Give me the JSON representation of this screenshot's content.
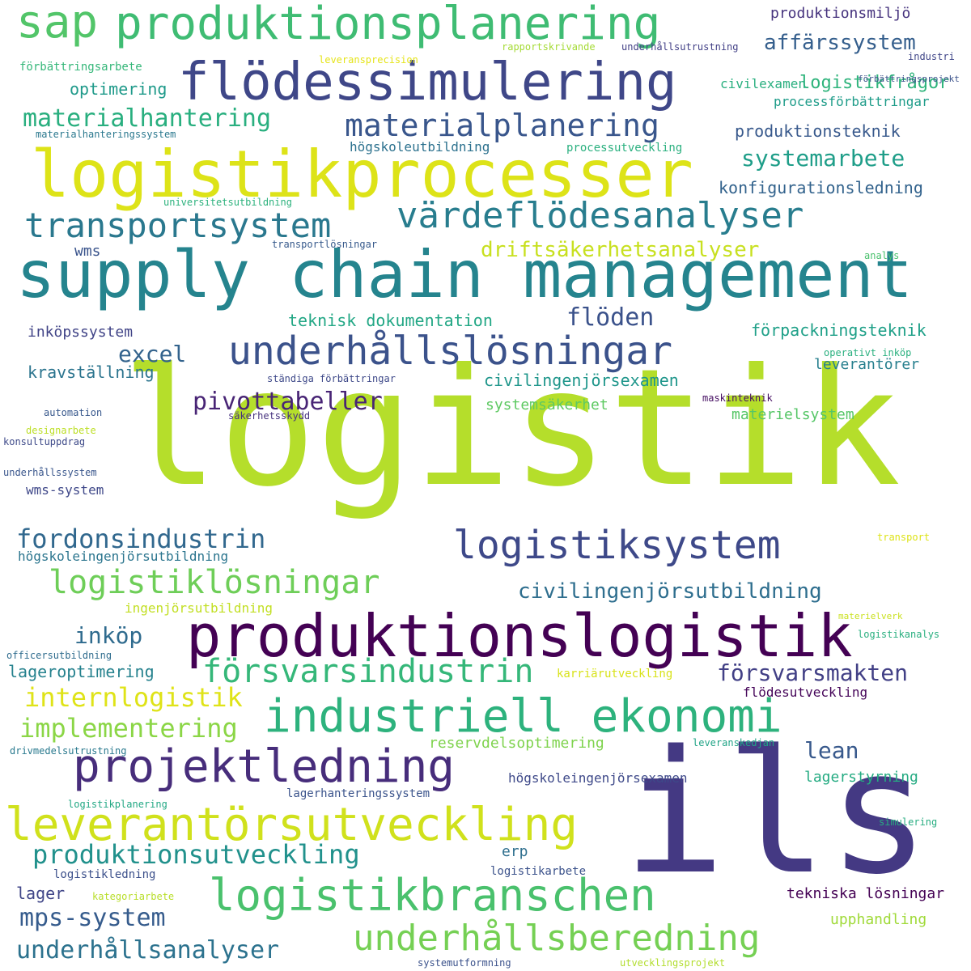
{
  "words": [
    {
      "text": "logistik",
      "color": "#b5de2b"
    },
    {
      "text": "ils",
      "color": "#443983"
    },
    {
      "text": "supply chain management",
      "color": "#25848e"
    },
    {
      "text": "logistikprocesser",
      "color": "#dde318"
    },
    {
      "text": "flödessimulering",
      "color": "#3f4788"
    },
    {
      "text": "produktionsplanering",
      "color": "#3fbc73"
    },
    {
      "text": "sap",
      "color": "#52c569"
    },
    {
      "text": "produktionslogistik",
      "color": "#440154"
    },
    {
      "text": "industriell ekonomi",
      "color": "#2db27d"
    },
    {
      "text": "underhållslösningar",
      "color": "#3b528b"
    },
    {
      "text": "värdeflödesanalyser",
      "color": "#287d8e"
    },
    {
      "text": "logistikbranschen",
      "color": "#4ac16d"
    },
    {
      "text": "leverantörsutveckling",
      "color": "#d0e11c"
    },
    {
      "text": "projektledning",
      "color": "#472d7b"
    },
    {
      "text": "logistiksystem",
      "color": "#3e4989"
    },
    {
      "text": "materialplanering",
      "color": "#39568c"
    },
    {
      "text": "transportsystem",
      "color": "#2a788e"
    },
    {
      "text": "underhållsberedning",
      "color": "#75d054"
    },
    {
      "text": "logistiklösningar",
      "color": "#6ece58"
    },
    {
      "text": "produktionsutveckling",
      "color": "#21918c"
    },
    {
      "text": "försvarsindustrin",
      "color": "#35b779"
    },
    {
      "text": "fordonsindustrin",
      "color": "#31688e"
    },
    {
      "text": "underhållsanalyser",
      "color": "#2c728e"
    },
    {
      "text": "mps-system",
      "color": "#365c8d"
    },
    {
      "text": "civilingenjörsutbildning",
      "color": "#2e6e8e"
    },
    {
      "text": "implementering",
      "color": "#8bd646"
    },
    {
      "text": "internlogistik",
      "color": "#dfe318"
    },
    {
      "text": "materialhantering",
      "color": "#29af7f"
    },
    {
      "text": "pivottabeller",
      "color": "#482475"
    },
    {
      "text": "driftsäkerhetsanalyser",
      "color": "#c8e020"
    },
    {
      "text": "affärssystem",
      "color": "#355f8d"
    },
    {
      "text": "systemarbete",
      "color": "#1f9e89"
    },
    {
      "text": "flöden",
      "color": "#3b528b"
    },
    {
      "text": "försvarsmakten",
      "color": "#424086"
    },
    {
      "text": "inköp",
      "color": "#2f6b8e"
    },
    {
      "text": "excel",
      "color": "#33638d"
    },
    {
      "text": "lean",
      "color": "#38598c"
    },
    {
      "text": "logistikfrågor",
      "color": "#2fb47c"
    },
    {
      "text": "produktionsteknik",
      "color": "#38598c"
    },
    {
      "text": "konfigurationsledning",
      "color": "#33638d"
    },
    {
      "text": "förpackningsteknik",
      "color": "#1fa088"
    },
    {
      "text": "teknisk dokumentation",
      "color": "#22a785"
    },
    {
      "text": "civilingenjörsexamen",
      "color": "#1f968b"
    },
    {
      "text": "produktionsmiljö",
      "color": "#46337e"
    },
    {
      "text": "processförbättringar",
      "color": "#1e9c89"
    },
    {
      "text": "optimering",
      "color": "#1f9a8a"
    },
    {
      "text": "lageroptimering",
      "color": "#26828e"
    },
    {
      "text": "lagerstyrning",
      "color": "#25ab82"
    },
    {
      "text": "upphandling",
      "color": "#a0da39"
    },
    {
      "text": "lager",
      "color": "#404688"
    },
    {
      "text": "tekniska lösningar",
      "color": "#440154"
    },
    {
      "text": "kravställning",
      "color": "#2b748e"
    },
    {
      "text": "inköpssystem",
      "color": "#414487"
    },
    {
      "text": "systemsäkerhet",
      "color": "#5ec962"
    },
    {
      "text": "leverantörer",
      "color": "#277f8e"
    },
    {
      "text": "materielsystem",
      "color": "#56c667"
    },
    {
      "text": "reservdelsoptimering",
      "color": "#7fd34e"
    },
    {
      "text": "högskoleingenjörsexamen",
      "color": "#3e4989"
    },
    {
      "text": "högskoleingenjörsutbildning",
      "color": "#2b758e"
    },
    {
      "text": "wms",
      "color": "#3a548c"
    },
    {
      "text": "högskoleutbildning",
      "color": "#2c718e"
    },
    {
      "text": "erp",
      "color": "#2e6f8e"
    },
    {
      "text": "civilexamen",
      "color": "#29af7f"
    },
    {
      "text": "flödesutveckling",
      "color": "#450559"
    },
    {
      "text": "lagerhanteringssystem",
      "color": "#3a538b"
    },
    {
      "text": "ingenjörsutbildning",
      "color": "#c2df23"
    },
    {
      "text": "wms-system",
      "color": "#3f4889"
    },
    {
      "text": "logistikledning",
      "color": "#3c508b"
    },
    {
      "text": "logistikarbete",
      "color": "#3b528b"
    },
    {
      "text": "kategoriarbete",
      "color": "#b8de29"
    },
    {
      "text": "processutveckling",
      "color": "#2ab07f"
    },
    {
      "text": "karriärutveckling",
      "color": "#d8e219"
    },
    {
      "text": "förbättringsarbete",
      "color": "#35b779"
    },
    {
      "text": "underhållsutrustning",
      "color": "#424086"
    },
    {
      "text": "leveransprecision",
      "color": "#e5e419"
    },
    {
      "text": "rapportskrivande",
      "color": "#a5db36"
    },
    {
      "text": "industri",
      "color": "#404688"
    },
    {
      "text": "materialhanteringssystem",
      "color": "#2a788e"
    },
    {
      "text": "universitetsutbildning",
      "color": "#2db27d"
    },
    {
      "text": "transportlösningar",
      "color": "#375a8c"
    },
    {
      "text": "analys",
      "color": "#4ac16d"
    },
    {
      "text": "operativt inköp",
      "color": "#2ab07f"
    },
    {
      "text": "ständiga förbättringar",
      "color": "#3e4989"
    },
    {
      "text": "maskinteknik",
      "color": "#471063"
    },
    {
      "text": "säkerhetsskydd",
      "color": "#46327e"
    },
    {
      "text": "automation",
      "color": "#38588c"
    },
    {
      "text": "designarbete",
      "color": "#bddf26"
    },
    {
      "text": "konsultuppdrag",
      "color": "#3e4a89"
    },
    {
      "text": "underhållssystem",
      "color": "#39568c"
    },
    {
      "text": "transport",
      "color": "#dde318"
    },
    {
      "text": "materielverk",
      "color": "#cae11f"
    },
    {
      "text": "officersutbildning",
      "color": "#2f6c8e"
    },
    {
      "text": "logistikanalys",
      "color": "#29af7f"
    },
    {
      "text": "förbättringsprojekt",
      "color": "#3b528b"
    },
    {
      "text": "leveranskedjan",
      "color": "#20a386"
    },
    {
      "text": "drivmedelsutrustning",
      "color": "#29798e"
    },
    {
      "text": "logistikplanering",
      "color": "#22a884"
    },
    {
      "text": "simulering",
      "color": "#27ad81"
    },
    {
      "text": "systemutformning",
      "color": "#3b528b"
    },
    {
      "text": "utvecklingsprojekt",
      "color": "#b2dd2d"
    }
  ]
}
